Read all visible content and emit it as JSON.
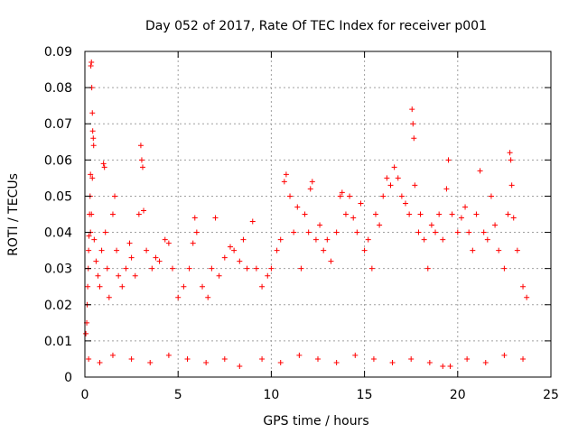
{
  "chart_data": {
    "type": "scatter",
    "title": "Day 052 of 2017, Rate Of TEC Index for receiver p001",
    "xlabel": "GPS time / hours",
    "ylabel": "ROTI / TECUs",
    "xlim": [
      0,
      25
    ],
    "ylim": [
      0,
      0.09
    ],
    "xticks": [
      0,
      5,
      10,
      15,
      20,
      25
    ],
    "yticks": [
      0,
      0.01,
      0.02,
      0.03,
      0.04,
      0.05,
      0.06,
      0.07,
      0.08,
      0.09
    ],
    "xtick_labels": [
      "0",
      "5",
      "10",
      "15",
      "20",
      "25"
    ],
    "ytick_labels": [
      "0",
      "0.01",
      "0.02",
      "0.03",
      "0.04",
      "0.05",
      "0.06",
      "0.07",
      "0.08",
      "0.09"
    ],
    "grid": true,
    "marker": "plus",
    "color": "#ff0000",
    "series": [
      {
        "points": [
          [
            0.05,
            0.012
          ],
          [
            0.1,
            0.015
          ],
          [
            0.12,
            0.02
          ],
          [
            0.15,
            0.025
          ],
          [
            0.18,
            0.03
          ],
          [
            0.2,
            0.035
          ],
          [
            0.22,
            0.039
          ],
          [
            0.25,
            0.045
          ],
          [
            0.28,
            0.05
          ],
          [
            0.3,
            0.056
          ],
          [
            0.32,
            0.086
          ],
          [
            0.35,
            0.087
          ],
          [
            0.37,
            0.08
          ],
          [
            0.4,
            0.073
          ],
          [
            0.42,
            0.068
          ],
          [
            0.45,
            0.066
          ],
          [
            0.47,
            0.064
          ],
          [
            0.3,
            0.04
          ],
          [
            0.35,
            0.045
          ],
          [
            0.4,
            0.055
          ],
          [
            0.5,
            0.038
          ],
          [
            0.6,
            0.032
          ],
          [
            0.7,
            0.028
          ],
          [
            0.8,
            0.025
          ],
          [
            0.9,
            0.035
          ],
          [
            1.0,
            0.059
          ],
          [
            1.05,
            0.058
          ],
          [
            1.1,
            0.04
          ],
          [
            1.2,
            0.03
          ],
          [
            1.3,
            0.022
          ],
          [
            1.5,
            0.045
          ],
          [
            1.6,
            0.05
          ],
          [
            1.7,
            0.035
          ],
          [
            1.8,
            0.028
          ],
          [
            2.0,
            0.025
          ],
          [
            2.2,
            0.03
          ],
          [
            2.4,
            0.037
          ],
          [
            2.5,
            0.033
          ],
          [
            2.7,
            0.028
          ],
          [
            2.9,
            0.045
          ],
          [
            3.0,
            0.064
          ],
          [
            3.05,
            0.06
          ],
          [
            3.1,
            0.058
          ],
          [
            3.15,
            0.046
          ],
          [
            3.3,
            0.035
          ],
          [
            3.6,
            0.03
          ],
          [
            3.8,
            0.033
          ],
          [
            4.0,
            0.032
          ],
          [
            4.3,
            0.038
          ],
          [
            4.5,
            0.037
          ],
          [
            4.7,
            0.03
          ],
          [
            5.0,
            0.022
          ],
          [
            5.3,
            0.025
          ],
          [
            5.6,
            0.03
          ],
          [
            5.8,
            0.037
          ],
          [
            5.9,
            0.044
          ],
          [
            6.0,
            0.04
          ],
          [
            6.3,
            0.025
          ],
          [
            6.6,
            0.022
          ],
          [
            6.8,
            0.03
          ],
          [
            7.0,
            0.044
          ],
          [
            7.2,
            0.028
          ],
          [
            7.5,
            0.033
          ],
          [
            7.8,
            0.036
          ],
          [
            8.0,
            0.035
          ],
          [
            8.3,
            0.032
          ],
          [
            8.5,
            0.038
          ],
          [
            8.7,
            0.03
          ],
          [
            9.0,
            0.043
          ],
          [
            9.2,
            0.03
          ],
          [
            9.5,
            0.025
          ],
          [
            9.8,
            0.028
          ],
          [
            10.0,
            0.03
          ],
          [
            10.3,
            0.035
          ],
          [
            10.5,
            0.038
          ],
          [
            10.7,
            0.054
          ],
          [
            10.8,
            0.056
          ],
          [
            11.0,
            0.05
          ],
          [
            11.2,
            0.04
          ],
          [
            11.4,
            0.047
          ],
          [
            11.6,
            0.03
          ],
          [
            11.8,
            0.045
          ],
          [
            12.0,
            0.04
          ],
          [
            12.1,
            0.052
          ],
          [
            12.2,
            0.054
          ],
          [
            12.4,
            0.038
          ],
          [
            12.6,
            0.042
          ],
          [
            12.8,
            0.035
          ],
          [
            13.0,
            0.038
          ],
          [
            13.2,
            0.032
          ],
          [
            13.5,
            0.04
          ],
          [
            13.7,
            0.05
          ],
          [
            13.8,
            0.051
          ],
          [
            14.0,
            0.045
          ],
          [
            14.2,
            0.05
          ],
          [
            14.4,
            0.044
          ],
          [
            14.6,
            0.04
          ],
          [
            14.8,
            0.048
          ],
          [
            15.0,
            0.035
          ],
          [
            15.2,
            0.038
          ],
          [
            15.4,
            0.03
          ],
          [
            15.6,
            0.045
          ],
          [
            15.8,
            0.042
          ],
          [
            16.0,
            0.05
          ],
          [
            16.2,
            0.055
          ],
          [
            16.4,
            0.053
          ],
          [
            16.6,
            0.058
          ],
          [
            16.8,
            0.055
          ],
          [
            17.0,
            0.05
          ],
          [
            17.2,
            0.048
          ],
          [
            17.4,
            0.045
          ],
          [
            17.55,
            0.074
          ],
          [
            17.6,
            0.07
          ],
          [
            17.65,
            0.066
          ],
          [
            17.7,
            0.053
          ],
          [
            17.9,
            0.04
          ],
          [
            18.0,
            0.045
          ],
          [
            18.2,
            0.038
          ],
          [
            18.4,
            0.03
          ],
          [
            18.6,
            0.042
          ],
          [
            18.8,
            0.04
          ],
          [
            19.0,
            0.045
          ],
          [
            19.2,
            0.038
          ],
          [
            19.4,
            0.052
          ],
          [
            19.5,
            0.06
          ],
          [
            19.7,
            0.045
          ],
          [
            20.0,
            0.04
          ],
          [
            20.2,
            0.044
          ],
          [
            20.4,
            0.047
          ],
          [
            20.6,
            0.04
          ],
          [
            20.8,
            0.035
          ],
          [
            21.0,
            0.045
          ],
          [
            21.2,
            0.057
          ],
          [
            21.4,
            0.04
          ],
          [
            21.6,
            0.038
          ],
          [
            21.8,
            0.05
          ],
          [
            22.0,
            0.042
          ],
          [
            22.2,
            0.035
          ],
          [
            22.5,
            0.03
          ],
          [
            22.7,
            0.045
          ],
          [
            22.8,
            0.062
          ],
          [
            22.85,
            0.06
          ],
          [
            22.9,
            0.053
          ],
          [
            23.0,
            0.044
          ],
          [
            23.2,
            0.035
          ],
          [
            23.5,
            0.025
          ],
          [
            23.7,
            0.022
          ],
          [
            0.2,
            0.005
          ],
          [
            0.8,
            0.004
          ],
          [
            1.5,
            0.006
          ],
          [
            2.5,
            0.005
          ],
          [
            3.5,
            0.004
          ],
          [
            4.5,
            0.006
          ],
          [
            5.5,
            0.005
          ],
          [
            6.5,
            0.004
          ],
          [
            7.5,
            0.005
          ],
          [
            8.3,
            0.003
          ],
          [
            9.5,
            0.005
          ],
          [
            10.5,
            0.004
          ],
          [
            11.5,
            0.006
          ],
          [
            12.5,
            0.005
          ],
          [
            13.5,
            0.004
          ],
          [
            14.5,
            0.006
          ],
          [
            15.5,
            0.005
          ],
          [
            16.5,
            0.004
          ],
          [
            17.5,
            0.005
          ],
          [
            18.5,
            0.004
          ],
          [
            19.2,
            0.003
          ],
          [
            19.6,
            0.003
          ],
          [
            20.5,
            0.005
          ],
          [
            21.5,
            0.004
          ],
          [
            22.5,
            0.006
          ],
          [
            23.5,
            0.005
          ]
        ]
      }
    ]
  }
}
